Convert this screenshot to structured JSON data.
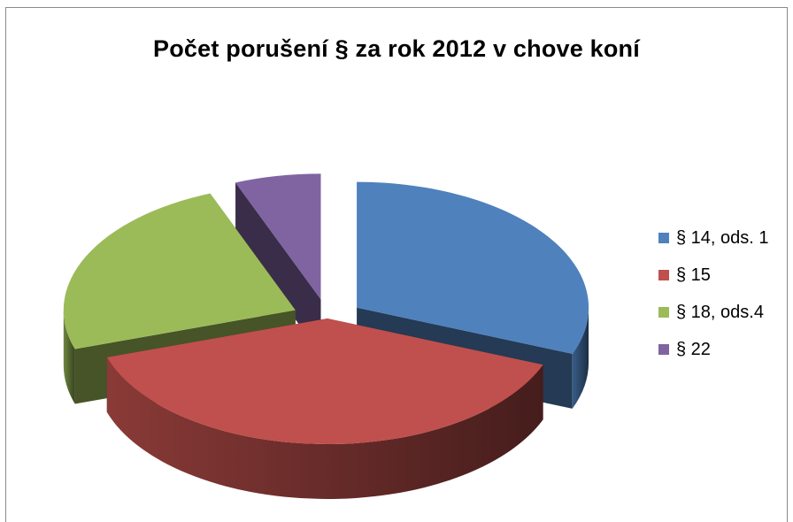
{
  "chart_data": {
    "type": "pie",
    "title": "Počet porušení § za rok 2012 v chove koní",
    "categories": [
      "§ 14, ods. 1",
      "§ 15",
      "§ 18, ods.4",
      "§ 22"
    ],
    "values": [
      31,
      39,
      24,
      6
    ],
    "colors": [
      "#4F81BD",
      "#C0504D",
      "#9BBB59",
      "#8064A2"
    ],
    "exploded": [
      true,
      false,
      true,
      true
    ],
    "legend_position": "right",
    "style": "3d-exploded"
  }
}
